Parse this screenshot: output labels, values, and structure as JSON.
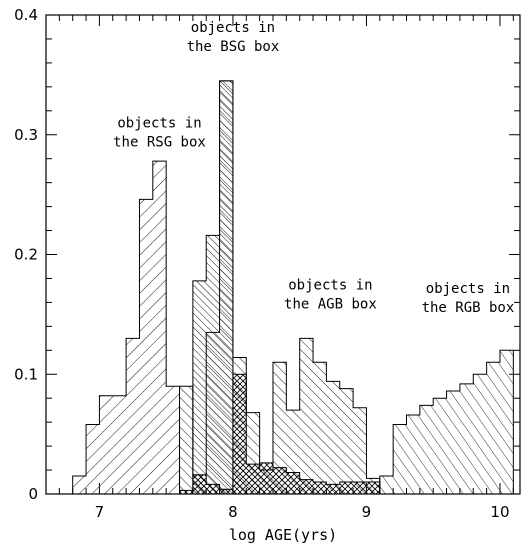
{
  "chart_data": {
    "type": "histogram",
    "title": "",
    "xlabel": "log AGE(yrs)",
    "ylabel": "",
    "xlim": [
      6.6,
      10.15
    ],
    "ylim": [
      0,
      0.4
    ],
    "xticks": [
      7,
      8,
      9,
      10
    ],
    "yticks": [
      0,
      0.1,
      0.2,
      0.3,
      0.4
    ],
    "xtick_labels": [
      "7",
      "8",
      "9",
      "10"
    ],
    "ytick_labels": [
      "0",
      "0.1",
      "0.2",
      "0.3",
      "0.4"
    ],
    "grid": false,
    "bin_width": 0.1,
    "series": [
      {
        "hatch": "forward-wide",
        "x_start": [
          6.8,
          6.9,
          7.0,
          7.1,
          7.2,
          7.3,
          7.4,
          7.5
        ],
        "values": [
          0.015,
          0.058,
          0.082,
          0.082,
          0.13,
          0.246,
          0.278,
          0.09
        ]
      },
      {
        "hatch": "back-dense",
        "x_start": [
          7.6,
          7.7,
          7.8,
          7.9,
          8.0,
          8.1
        ],
        "values": [
          0.0,
          0.178,
          0.216,
          0.345,
          0.0,
          0.0
        ]
      },
      {
        "hatch": "back",
        "x_start": [
          7.6,
          7.7,
          7.8,
          7.9,
          8.0,
          8.1,
          8.2,
          8.3,
          8.4,
          8.5,
          8.6,
          8.7,
          8.8,
          8.9,
          9.0,
          9.1
        ],
        "values": [
          0.09,
          0.016,
          0.135,
          0.345,
          0.114,
          0.068,
          0.02,
          0.11,
          0.07,
          0.13,
          0.11,
          0.094,
          0.088,
          0.072,
          0.013,
          0.0
        ]
      },
      {
        "hatch": "back-thin",
        "x_start": [
          9.1,
          9.2,
          9.3,
          9.4,
          9.5,
          9.6,
          9.7,
          9.8,
          9.9,
          10.0
        ],
        "values": [
          0.015,
          0.058,
          0.066,
          0.074,
          0.08,
          0.086,
          0.092,
          0.1,
          0.11,
          0.12
        ]
      },
      {
        "hatch": "cross",
        "x_start": [
          7.6,
          7.7,
          7.8,
          7.9,
          8.0,
          8.1,
          8.2,
          8.3,
          8.4,
          8.5,
          8.6,
          8.7,
          8.8,
          8.9,
          9.0
        ],
        "values": [
          0.003,
          0.016,
          0.008,
          0.004,
          0.1,
          0.025,
          0.026,
          0.022,
          0.018,
          0.012,
          0.01,
          0.008,
          0.01,
          0.01,
          0.01
        ]
      }
    ],
    "annotations": [
      {
        "lines": [
          "objects in",
          "the RSG box"
        ],
        "x": 7.45,
        "y": 0.29
      },
      {
        "lines": [
          "objects in",
          "the BSG box"
        ],
        "x": 8.0,
        "y": 0.37
      },
      {
        "lines": [
          "objects in",
          "the AGB box"
        ],
        "x": 8.73,
        "y": 0.155
      },
      {
        "lines": [
          "objects in",
          "the RGB box"
        ],
        "x": 9.76,
        "y": 0.152
      }
    ]
  }
}
